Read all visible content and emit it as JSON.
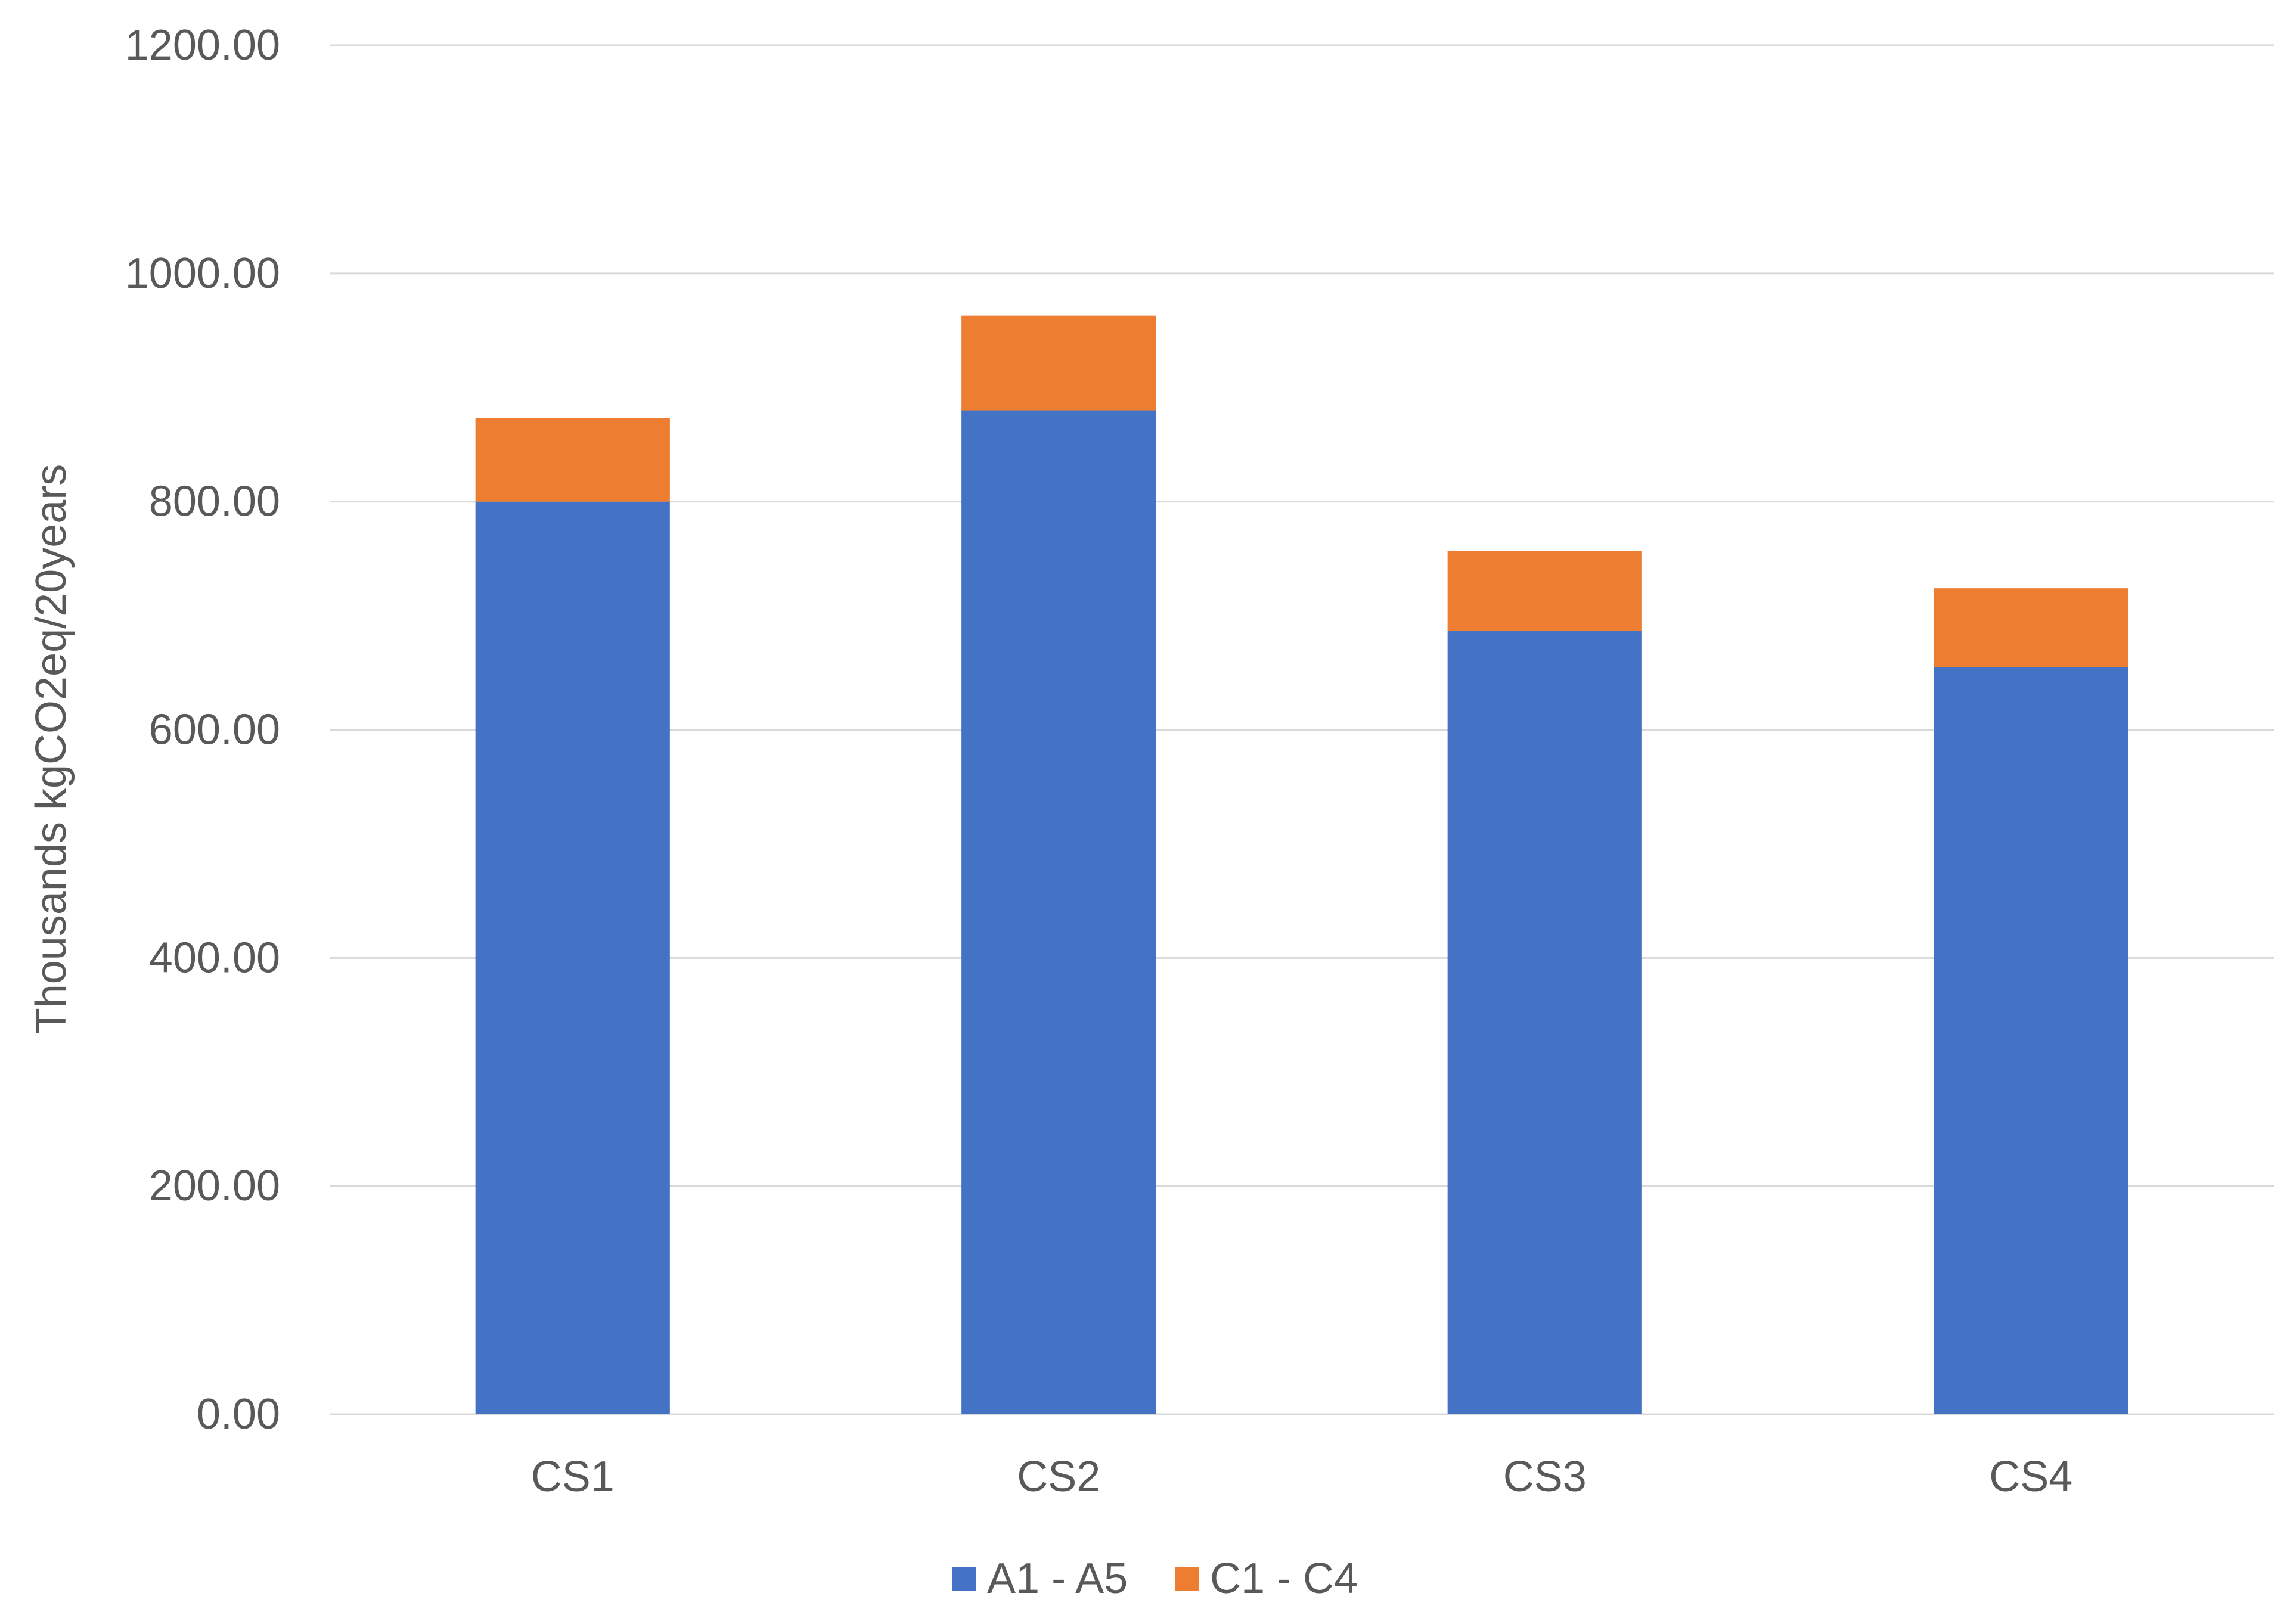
{
  "chart_data": {
    "type": "bar",
    "stacked": true,
    "categories": [
      "CS1",
      "CS2",
      "CS3",
      "CS4"
    ],
    "series": [
      {
        "name": "A1 - A5",
        "color": "#4472C4",
        "values": [
          800,
          880,
          687,
          655
        ]
      },
      {
        "name": "C1 - C4",
        "color": "#ED7D31",
        "values": [
          73,
          83,
          70,
          69
        ]
      }
    ],
    "ylabel": "Thousands kgCO2eq/20years",
    "xlabel": "",
    "ylim": [
      0,
      1200
    ],
    "yticks": [
      0,
      200,
      400,
      600,
      800,
      1000,
      1200
    ],
    "ytick_labels": [
      "0.00",
      "200.00",
      "400.00",
      "600.00",
      "800.00",
      "1000.00",
      "1200.00"
    ],
    "grid": true,
    "gridline_color": "#D9D9D9",
    "legend_position": "bottom"
  }
}
